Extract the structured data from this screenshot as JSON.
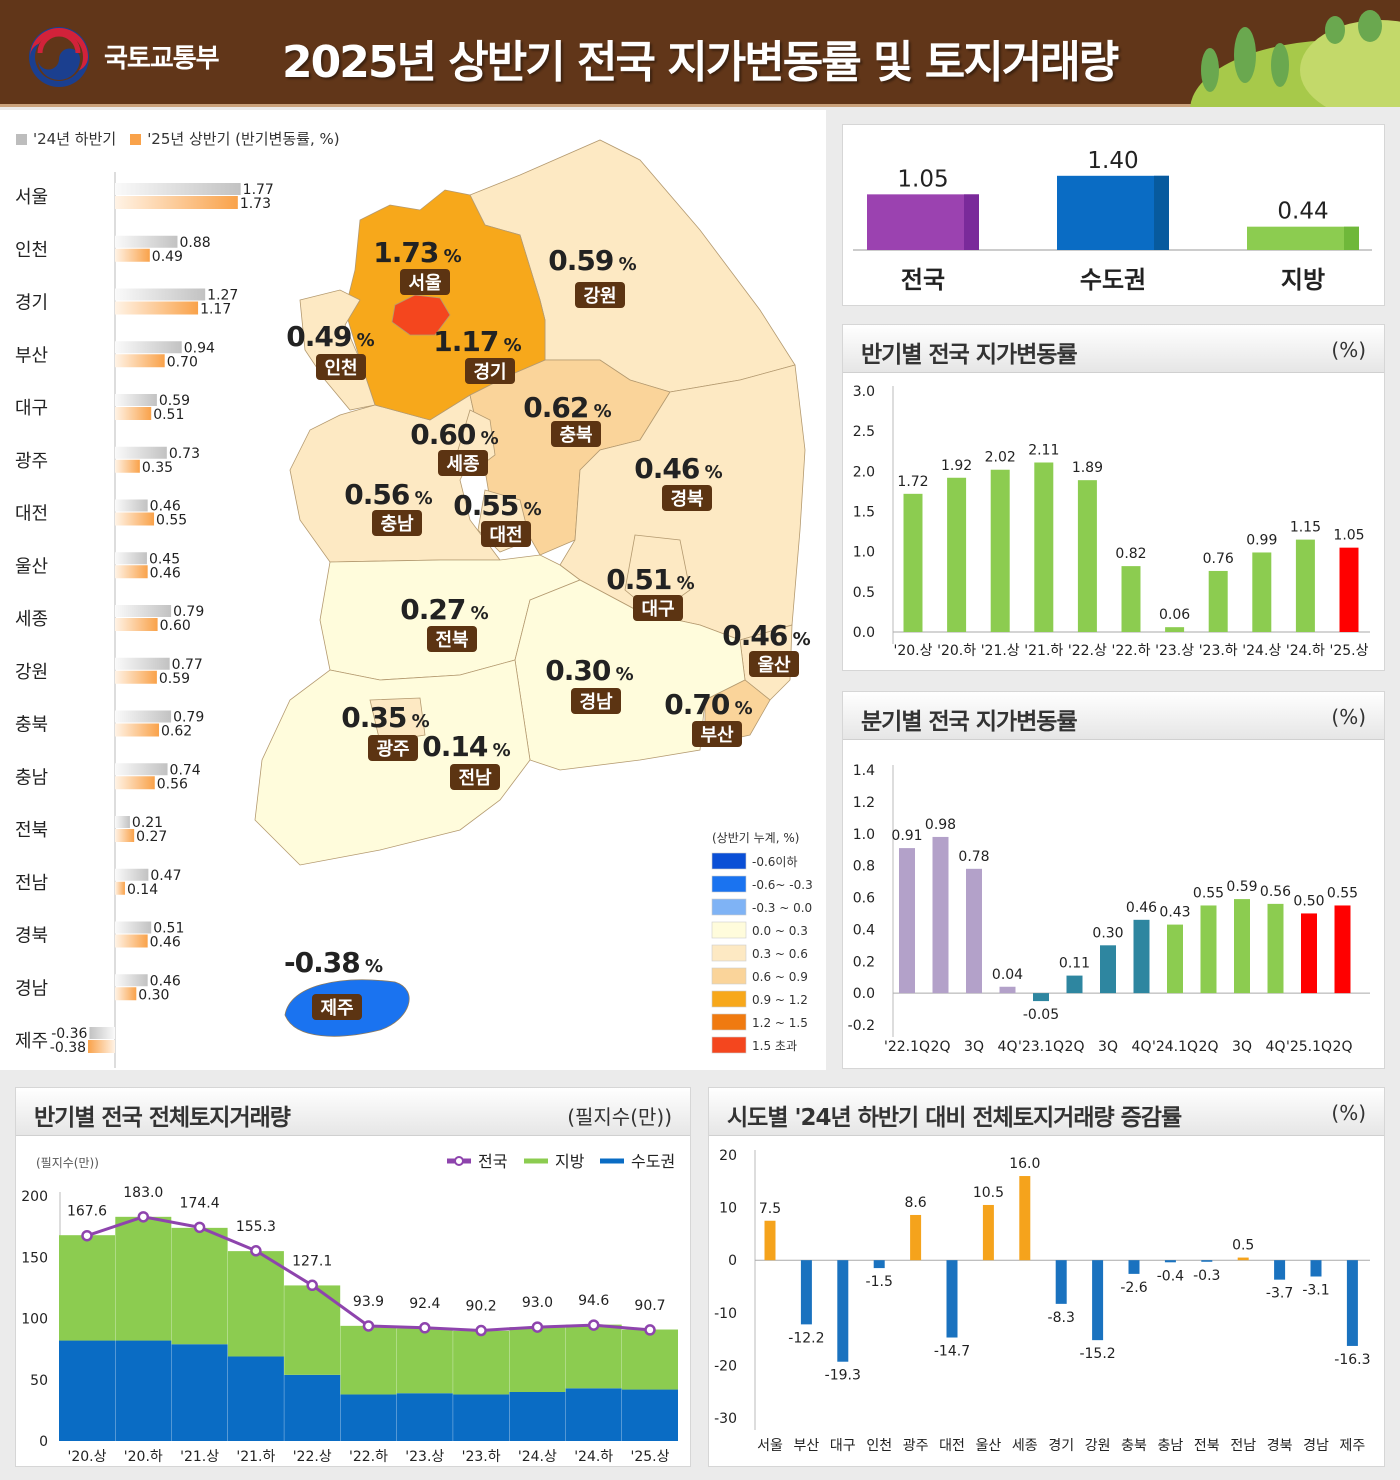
{
  "header": {
    "org": "국토교통부",
    "title": "2025년 상반기 전국 지가변동률 및 토지거래량"
  },
  "colors": {
    "header_bg": "#613619",
    "gray": "#c4c4c4",
    "orange": "#f9a24a",
    "purple": "#9b42b0",
    "blue": "#0a6cc4",
    "green": "#8ccc50",
    "red": "#ff0000",
    "teal": "#2e86a0",
    "lilac": "#b3a1c9",
    "jeonguk_line": "#8e44ad"
  },
  "regional_legend": {
    "prev": "'24년 하반기",
    "curr": "'25년 상반기 (반기변동률, %)"
  },
  "map": {
    "legend_title": "(상반기 누계, %)",
    "bins": [
      {
        "label": "-0.6이하",
        "color": "#0a4fd6"
      },
      {
        "label": "-0.6~ -0.3",
        "color": "#1a73f0"
      },
      {
        "label": "-0.3 ~ 0.0",
        "color": "#7fb3f5"
      },
      {
        "label": "0.0 ~ 0.3",
        "color": "#fffcdc"
      },
      {
        "label": "0.3 ~ 0.6",
        "color": "#fde9c3"
      },
      {
        "label": "0.6 ~ 0.9",
        "color": "#fad49a"
      },
      {
        "label": "0.9 ~ 1.2",
        "color": "#f7a81b"
      },
      {
        "label": "1.2 ~ 1.5",
        "color": "#f07a10"
      },
      {
        "label": "1.5 초과",
        "color": "#f4461e"
      }
    ],
    "regions": [
      {
        "name": "서울",
        "value": "1.73"
      },
      {
        "name": "인천",
        "value": "0.49"
      },
      {
        "name": "경기",
        "value": "1.17"
      },
      {
        "name": "강원",
        "value": "0.59"
      },
      {
        "name": "충북",
        "value": "0.62"
      },
      {
        "name": "세종",
        "value": "0.60"
      },
      {
        "name": "경북",
        "value": "0.46"
      },
      {
        "name": "충남",
        "value": "0.56"
      },
      {
        "name": "대전",
        "value": "0.55"
      },
      {
        "name": "대구",
        "value": "0.51"
      },
      {
        "name": "전북",
        "value": "0.27"
      },
      {
        "name": "울산",
        "value": "0.46"
      },
      {
        "name": "경남",
        "value": "0.30"
      },
      {
        "name": "부산",
        "value": "0.70"
      },
      {
        "name": "광주",
        "value": "0.35"
      },
      {
        "name": "전남",
        "value": "0.14"
      },
      {
        "name": "제주",
        "value": "-0.38"
      }
    ],
    "unit": "%"
  },
  "chart_data": [
    {
      "id": "regional",
      "type": "bar",
      "orientation": "horizontal",
      "categories": [
        "서울",
        "인천",
        "경기",
        "부산",
        "대구",
        "광주",
        "대전",
        "울산",
        "세종",
        "강원",
        "충북",
        "충남",
        "전북",
        "전남",
        "경북",
        "경남",
        "제주"
      ],
      "series": [
        {
          "name": "'24년 하반기",
          "values": [
            1.77,
            0.88,
            1.27,
            0.94,
            0.59,
            0.73,
            0.46,
            0.45,
            0.79,
            0.77,
            0.79,
            0.74,
            0.21,
            0.47,
            0.51,
            0.46,
            -0.36
          ]
        },
        {
          "name": "'25년 상반기",
          "values": [
            1.73,
            0.49,
            1.17,
            0.7,
            0.51,
            0.35,
            0.55,
            0.46,
            0.6,
            0.59,
            0.62,
            0.56,
            0.27,
            0.14,
            0.46,
            0.3,
            -0.38
          ]
        }
      ]
    },
    {
      "id": "summary",
      "type": "bar",
      "categories": [
        "전국",
        "수도권",
        "지방"
      ],
      "values": [
        "1.05",
        "1.40",
        "0.44"
      ]
    },
    {
      "id": "half",
      "type": "bar",
      "title": "반기별 전국 지가변동률",
      "unit": "(%)",
      "categories": [
        "'20.상",
        "'20.하",
        "'21.상",
        "'21.하",
        "'22.상",
        "'22.하",
        "'23.상",
        "'23.하",
        "'24.상",
        "'24.하",
        "'25.상"
      ],
      "values": [
        "1.72",
        "1.92",
        "2.02",
        "2.11",
        "1.89",
        "0.82",
        "0.06",
        "0.76",
        "0.99",
        "1.15",
        "1.05"
      ],
      "yticks": [
        "0.0",
        "0.5",
        "1.0",
        "1.5",
        "2.0",
        "2.5",
        "3.0"
      ],
      "ylim": [
        0,
        3
      ]
    },
    {
      "id": "quarter",
      "type": "bar",
      "title": "분기별 전국 지가변동률",
      "unit": "(%)",
      "categories": [
        "'22.1Q",
        "2Q",
        "3Q",
        "4Q",
        "'23.1Q",
        "2Q",
        "3Q",
        "4Q",
        "'24.1Q",
        "2Q",
        "3Q",
        "4Q",
        "'25.1Q",
        "2Q"
      ],
      "values": [
        "0.91",
        "0.98",
        "0.78",
        "0.04",
        "-0.05",
        "0.11",
        "0.30",
        "0.46",
        "0.43",
        "0.55",
        "0.59",
        "0.56",
        "0.50",
        "0.55"
      ],
      "yticks": [
        "-0.2",
        "0.0",
        "0.2",
        "0.4",
        "0.6",
        "0.8",
        "1.0",
        "1.2",
        "1.4"
      ],
      "ylim": [
        -0.2,
        1.4
      ]
    },
    {
      "id": "volume",
      "type": "bar",
      "stacked": true,
      "title": "반기별 전국 전체토지거래량",
      "unit": "(필지수(만))",
      "ylabel": "(필지수(만))",
      "categories": [
        "'20.상",
        "'20.하",
        "'21.상",
        "'21.하",
        "'22.상",
        "'22.하",
        "'23.상",
        "'23.하",
        "'24.상",
        "'24.하",
        "'25.상"
      ],
      "series": [
        {
          "name": "전국",
          "values": [
            "167.6",
            "183.0",
            "174.4",
            "155.3",
            "127.1",
            "93.9",
            "92.4",
            "90.2",
            "93.0",
            "94.6",
            "90.7"
          ]
        },
        {
          "name": "지방",
          "values": [
            86,
            101,
            95,
            86,
            73,
            56,
            53,
            52,
            53,
            52,
            49
          ]
        },
        {
          "name": "수도권",
          "values": [
            82,
            82,
            79,
            69,
            54,
            38,
            39,
            38,
            40,
            43,
            42
          ]
        }
      ],
      "yticks": [
        "0",
        "50",
        "100",
        "150",
        "200"
      ],
      "ylim": [
        0,
        200
      ]
    },
    {
      "id": "change",
      "type": "bar",
      "title": "시도별 '24년 하반기 대비 전체토지거래량 증감률",
      "unit": "(%)",
      "categories": [
        "서울",
        "부산",
        "대구",
        "인천",
        "광주",
        "대전",
        "울산",
        "세종",
        "경기",
        "강원",
        "충북",
        "충남",
        "전북",
        "전남",
        "경북",
        "경남",
        "제주"
      ],
      "values": [
        "7.5",
        "-12.2",
        "-19.3",
        "-1.5",
        "8.6",
        "-14.7",
        "10.5",
        "16.0",
        "-8.3",
        "-15.2",
        "-2.6",
        "-0.4",
        "-0.3",
        "0.5",
        "-3.7",
        "-3.1",
        "-16.3"
      ],
      "yticks": [
        "-30",
        "-20",
        "-10",
        "0",
        "10",
        "20"
      ],
      "ylim": [
        -30,
        20
      ]
    }
  ]
}
